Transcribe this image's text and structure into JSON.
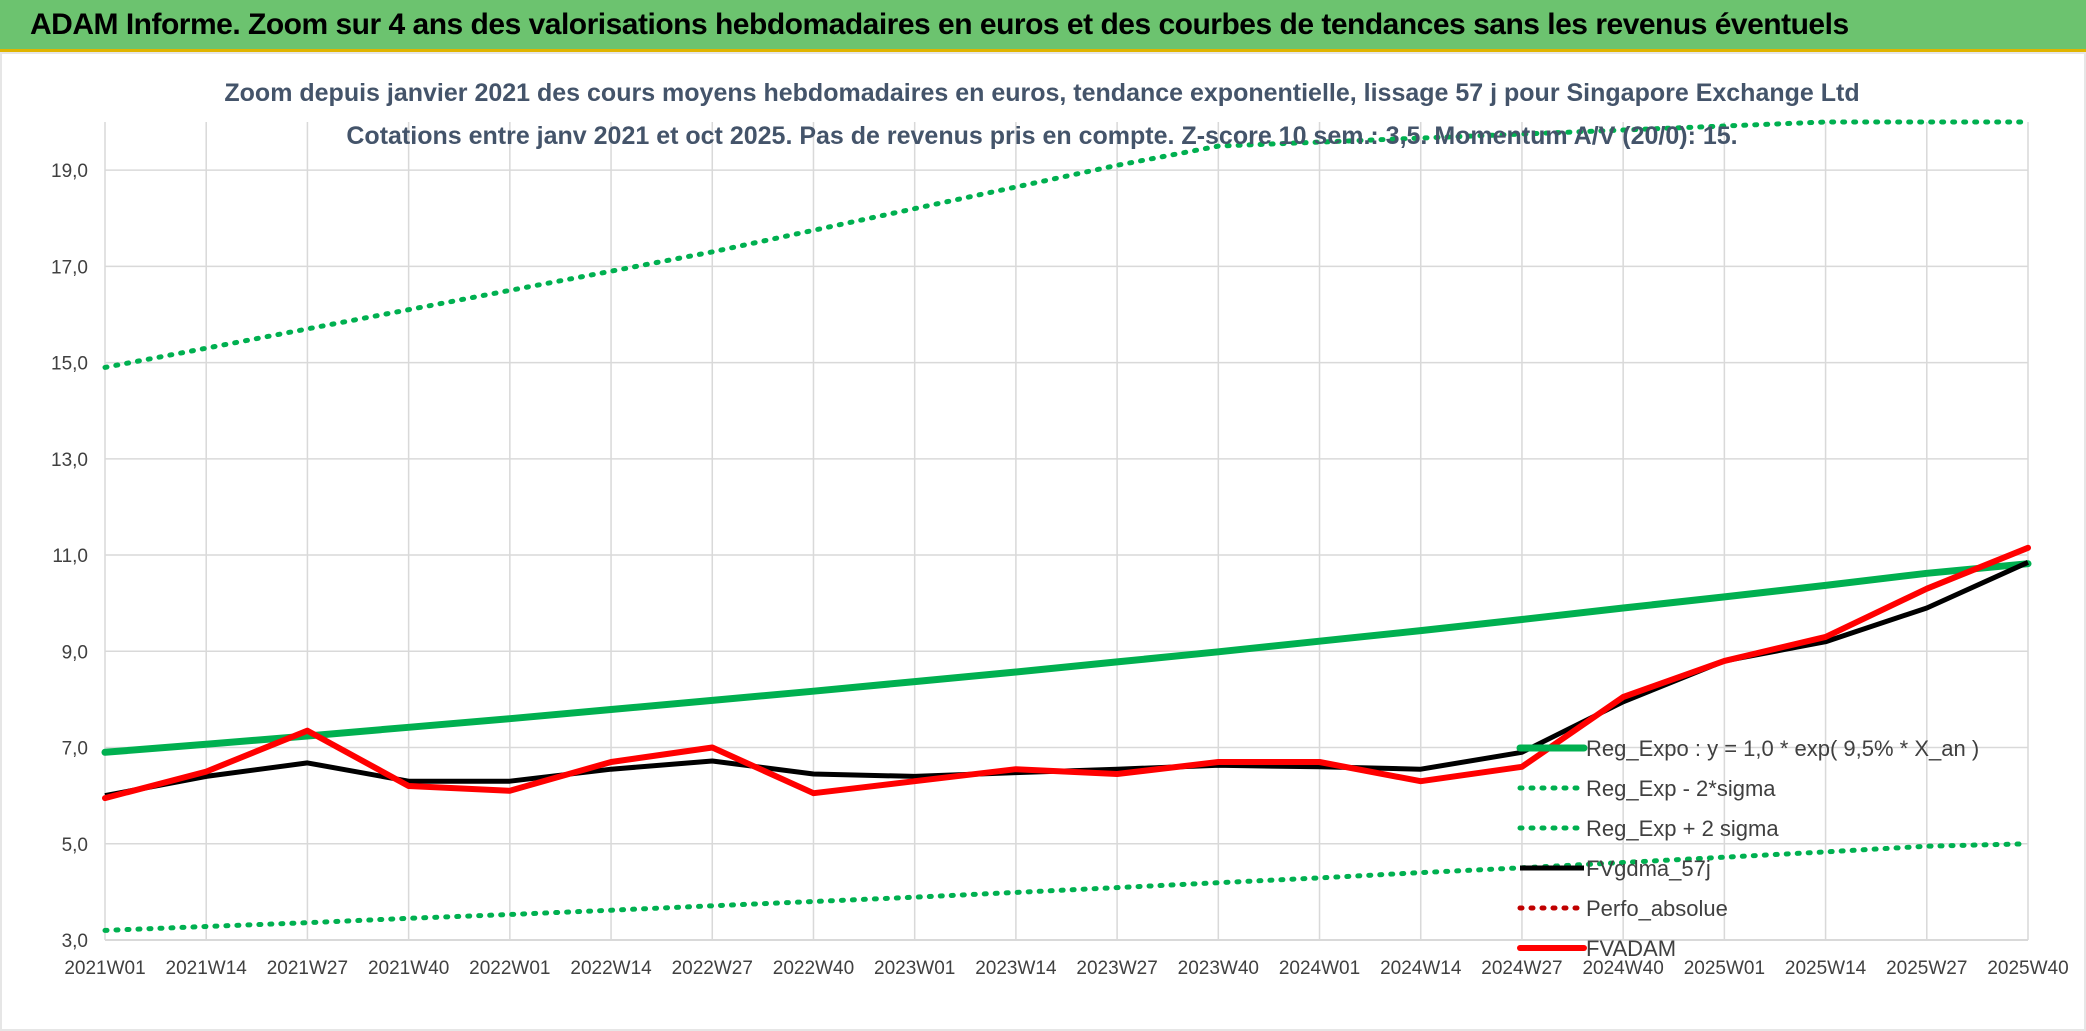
{
  "banner": {
    "title": "ADAM Informe. Zoom sur 4 ans des valorisations hebdomadaires en euros et des courbes de tendances sans les revenus éventuels"
  },
  "chart_data": {
    "type": "line",
    "title": "Zoom depuis janvier 2021 des cours moyens hebdomadaires en euros, tendance exponentielle, lissage 57 j pour Singapore Exchange Ltd",
    "subtitle": "Cotations entre janv 2021 et oct 2025. Pas de revenus pris en compte. Z-score 10 sem.: 3,5. Momentum A/V (20/0): 15.",
    "xlabel": "",
    "ylabel": "",
    "ylim": [
      3.0,
      20.0
    ],
    "yticks": [
      3.0,
      5.0,
      7.0,
      9.0,
      11.0,
      13.0,
      15.0,
      17.0,
      19.0
    ],
    "ytick_labels": [
      "3,0",
      "5,0",
      "7,0",
      "9,0",
      "11,0",
      "13,0",
      "15,0",
      "17,0",
      "19,0"
    ],
    "x_categories": [
      "2021W01",
      "2021W14",
      "2021W27",
      "2021W40",
      "2022W01",
      "2022W14",
      "2022W27",
      "2022W40",
      "2023W01",
      "2023W14",
      "2023W27",
      "2023W40",
      "2024W01",
      "2024W14",
      "2024W27",
      "2024W40",
      "2025W01",
      "2025W14",
      "2025W27",
      "2025W40"
    ],
    "grid": true,
    "legend_position": "lower-right",
    "series": [
      {
        "name": "Reg_Expo : y = 1,0 * exp( 9,5% *  X_an )",
        "color": "#00b050",
        "style": "solid-thick",
        "x": [
          "2021W01",
          "2021W14",
          "2021W27",
          "2021W40",
          "2022W01",
          "2022W14",
          "2022W27",
          "2022W40",
          "2023W01",
          "2023W14",
          "2023W27",
          "2023W40",
          "2024W01",
          "2024W14",
          "2024W27",
          "2024W40",
          "2025W01",
          "2025W14",
          "2025W27",
          "2025W40"
        ],
        "values": [
          6.9,
          7.07,
          7.24,
          7.42,
          7.6,
          7.79,
          7.98,
          8.17,
          8.37,
          8.57,
          8.78,
          8.99,
          9.21,
          9.43,
          9.66,
          9.9,
          10.13,
          10.37,
          10.62,
          10.82
        ]
      },
      {
        "name": "Reg_Exp - 2*sigma",
        "color": "#00b050",
        "style": "dotted",
        "x": [
          "2021W01",
          "2021W14",
          "2021W27",
          "2021W40",
          "2022W01",
          "2022W14",
          "2022W27",
          "2022W40",
          "2023W01",
          "2023W14",
          "2023W27",
          "2023W40",
          "2024W01",
          "2024W14",
          "2024W27",
          "2024W40",
          "2025W01",
          "2025W14",
          "2025W27",
          "2025W40"
        ],
        "values": [
          3.2,
          3.28,
          3.36,
          3.45,
          3.53,
          3.62,
          3.71,
          3.8,
          3.89,
          3.99,
          4.09,
          4.19,
          4.29,
          4.4,
          4.5,
          4.61,
          4.72,
          4.83,
          4.95,
          5.0
        ]
      },
      {
        "name": "Reg_Exp + 2 sigma",
        "color": "#00b050",
        "style": "dotted",
        "x": [
          "2021W01",
          "2021W14",
          "2021W27",
          "2021W40",
          "2022W01",
          "2022W14",
          "2022W27",
          "2022W40",
          "2023W01",
          "2023W14",
          "2023W27",
          "2023W40",
          "2025W14",
          "2025W27",
          "2025W40"
        ],
        "values": [
          14.9,
          15.3,
          15.7,
          16.1,
          16.5,
          16.9,
          17.3,
          17.75,
          18.2,
          18.65,
          19.1,
          19.5,
          20.0,
          20.0,
          20.0
        ]
      },
      {
        "name": "FVgdma_57j",
        "color": "#000000",
        "style": "solid",
        "x": [
          "2021W01",
          "2021W14",
          "2021W27",
          "2021W40",
          "2022W01",
          "2022W14",
          "2022W27",
          "2022W40",
          "2023W01",
          "2023W14",
          "2023W27",
          "2023W40",
          "2024W01",
          "2024W14",
          "2024W27",
          "2024W40",
          "2025W01",
          "2025W14",
          "2025W27",
          "2025W40"
        ],
        "values": [
          6.0,
          6.4,
          6.68,
          6.3,
          6.3,
          6.55,
          6.72,
          6.45,
          6.4,
          6.48,
          6.55,
          6.63,
          6.6,
          6.55,
          6.9,
          7.95,
          8.8,
          9.2,
          9.9,
          10.85
        ]
      },
      {
        "name": "Perfo_absolue",
        "color": "#c00000",
        "style": "dotted",
        "x": [],
        "values": []
      },
      {
        "name": "FVADAM",
        "color": "#ff0000",
        "style": "solid-thick",
        "x": [
          "2021W01",
          "2021W14",
          "2021W27",
          "2021W40",
          "2022W01",
          "2022W14",
          "2022W27",
          "2022W40",
          "2023W01",
          "2023W14",
          "2023W27",
          "2023W40",
          "2024W01",
          "2024W14",
          "2024W27",
          "2024W40",
          "2025W01",
          "2025W14",
          "2025W27",
          "2025W40"
        ],
        "values": [
          5.95,
          6.5,
          7.35,
          6.2,
          6.1,
          6.7,
          7.0,
          6.05,
          6.3,
          6.55,
          6.45,
          6.7,
          6.7,
          6.3,
          6.6,
          8.05,
          8.8,
          9.3,
          10.3,
          11.15
        ]
      }
    ]
  }
}
